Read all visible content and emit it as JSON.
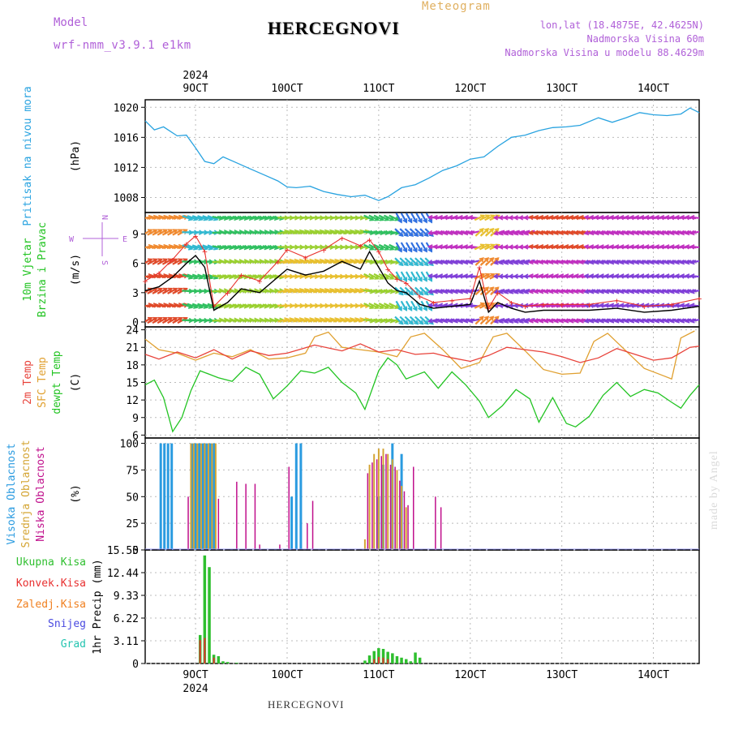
{
  "header": {
    "model_label": "Model",
    "model_name": "wrf-nmm_v3.9.1 e1km",
    "title": "HERCEGNOVI",
    "meteogram_label": "Meteogram",
    "lonlat": "lon,lat (18.4875E, 42.4625N)",
    "altitude": "Nadmorska Visina 60m",
    "model_altitude": "Nadmorska Visina u modelu 88.4629m",
    "footer_title": "HERCEGNOVI",
    "credit": "made by Angel"
  },
  "colors": {
    "pressure": "#29a3e0",
    "wind_speed": "#000000",
    "gust": "#e8322e",
    "temp2m": "#e8423a",
    "sfc_temp": "#e0a030",
    "dewpt": "#22c422",
    "cloud_high": "#2a9be0",
    "cloud_mid": "#d4a534",
    "cloud_low": "#c0108c",
    "precip_total": "#2ebf2e",
    "precip_conv": "#e83030",
    "precip_frozen": "#f08020",
    "snow": "#4a4ae0",
    "grad": "#24c4b0"
  },
  "chart_data": {
    "type": "line",
    "time_axis": {
      "top_year": "2024",
      "bottom_year": "2024",
      "day_ticks": [
        "9OCT",
        "10OCT",
        "11OCT",
        "12OCT",
        "13OCT",
        "14OCT"
      ],
      "start_day": 8.45,
      "end_day": 14.5
    },
    "panels": [
      {
        "id": "pressure",
        "ylabel_lines": [
          "Pritisak na nivou mora"
        ],
        "unit": "(hPa)",
        "ylim": [
          1006,
          1021
        ],
        "yticks": [
          1008,
          1012,
          1016,
          1020
        ],
        "series": [
          {
            "name": "Pritisak na nivou mora",
            "x": [
              8.45,
              8.55,
              8.65,
              8.8,
              8.9,
              9.0,
              9.1,
              9.2,
              9.3,
              9.45,
              9.6,
              9.75,
              9.9,
              10.0,
              10.1,
              10.25,
              10.4,
              10.55,
              10.7,
              10.85,
              11.0,
              11.1,
              11.25,
              11.4,
              11.55,
              11.7,
              11.85,
              12.0,
              12.15,
              12.3,
              12.45,
              12.6,
              12.75,
              12.9,
              13.05,
              13.2,
              13.4,
              13.55,
              13.7,
              13.85,
              14.0,
              14.15,
              14.3,
              14.4,
              14.5
            ],
            "y": [
              1018.2,
              1017.0,
              1017.4,
              1016.2,
              1016.3,
              1014.6,
              1012.8,
              1012.5,
              1013.4,
              1012.6,
              1011.8,
              1011.0,
              1010.2,
              1009.4,
              1009.3,
              1009.5,
              1008.8,
              1008.4,
              1008.1,
              1008.3,
              1007.6,
              1008.1,
              1009.3,
              1009.7,
              1010.6,
              1011.6,
              1012.2,
              1013.1,
              1013.4,
              1014.8,
              1016.0,
              1016.3,
              1016.9,
              1017.3,
              1017.4,
              1017.6,
              1018.6,
              1018.0,
              1018.6,
              1019.3,
              1019.0,
              1018.9,
              1019.1,
              1019.9,
              1019.3
            ]
          }
        ]
      },
      {
        "id": "wind",
        "ylabel_lines": [
          "10m Vjetar",
          "Brzina i Pravac"
        ],
        "unit": "(m/s)",
        "ylim": [
          -0.5,
          11.2
        ],
        "yticks": [
          0,
          3,
          6,
          9
        ],
        "compass": {
          "n": "N",
          "e": "E",
          "s": "S",
          "w": "W"
        },
        "series": [
          {
            "name": "wind speed",
            "x": [
              8.45,
              8.6,
              8.75,
              8.9,
              9.0,
              9.1,
              9.2,
              9.35,
              9.5,
              9.7,
              9.9,
              10.0,
              10.2,
              10.4,
              10.6,
              10.8,
              10.9,
              11.0,
              11.1,
              11.2,
              11.3,
              11.45,
              11.6,
              11.8,
              12.0,
              12.1,
              12.2,
              12.3,
              12.45,
              12.6,
              12.8,
              13.0,
              13.3,
              13.6,
              13.9,
              14.2,
              14.5
            ],
            "y": [
              3.2,
              3.6,
              4.6,
              6.0,
              6.8,
              5.6,
              1.2,
              2.0,
              3.4,
              3.0,
              4.6,
              5.4,
              4.8,
              5.2,
              6.2,
              5.4,
              7.2,
              5.6,
              4.0,
              3.2,
              3.0,
              1.8,
              1.4,
              1.6,
              1.8,
              4.2,
              1.0,
              2.0,
              1.4,
              1.0,
              1.2,
              1.2,
              1.2,
              1.4,
              1.0,
              1.2,
              1.6
            ]
          },
          {
            "name": "gust",
            "x": [
              8.45,
              8.6,
              8.75,
              8.9,
              9.0,
              9.1,
              9.2,
              9.35,
              9.5,
              9.7,
              9.9,
              10.0,
              10.2,
              10.4,
              10.6,
              10.8,
              10.9,
              11.0,
              11.1,
              11.2,
              11.3,
              11.45,
              11.6,
              11.8,
              12.0,
              12.1,
              12.2,
              12.3,
              12.45,
              12.6,
              12.8,
              13.0,
              13.3,
              13.6,
              13.9,
              14.2,
              14.5
            ],
            "y": [
              4.2,
              5.0,
              6.4,
              8.0,
              8.8,
              7.2,
              1.6,
              3.0,
              4.8,
              4.2,
              6.2,
              7.4,
              6.6,
              7.4,
              8.6,
              7.8,
              8.4,
              7.2,
              5.4,
              4.4,
              4.0,
              2.6,
              2.0,
              2.2,
              2.4,
              5.6,
              1.4,
              3.0,
              2.0,
              1.6,
              1.8,
              1.8,
              1.8,
              2.2,
              1.6,
              1.8,
              2.4
            ]
          }
        ]
      },
      {
        "id": "temperature",
        "ylabel_lines": [
          "2m Temp",
          "SFC Temp",
          "dewpt Temp"
        ],
        "unit": "(C)",
        "ylim": [
          5.5,
          24.5
        ],
        "yticks": [
          6,
          9,
          12,
          15,
          18,
          21,
          24
        ],
        "series": [
          {
            "name": "2m Temp",
            "x": [
              8.45,
              8.6,
              8.8,
              9.0,
              9.2,
              9.4,
              9.6,
              9.8,
              10.0,
              10.3,
              10.6,
              10.8,
              11.0,
              11.2,
              11.4,
              11.6,
              11.8,
              12.0,
              12.2,
              12.4,
              12.6,
              12.8,
              13.0,
              13.2,
              13.4,
              13.6,
              13.8,
              14.0,
              14.2,
              14.4,
              14.5
            ],
            "y": [
              19.8,
              19.0,
              20.2,
              19.2,
              20.6,
              19.0,
              20.4,
              19.6,
              20.0,
              21.4,
              20.4,
              21.6,
              20.2,
              20.6,
              19.8,
              20.0,
              19.2,
              18.6,
              19.6,
              21.0,
              20.6,
              20.2,
              19.4,
              18.4,
              19.2,
              20.8,
              19.8,
              18.8,
              19.2,
              21.0,
              21.2
            ]
          },
          {
            "name": "SFC Temp",
            "x": [
              8.45,
              8.6,
              8.8,
              9.0,
              9.2,
              9.4,
              9.6,
              9.8,
              10.0,
              10.2,
              10.3,
              10.45,
              10.6,
              10.8,
              11.0,
              11.2,
              11.35,
              11.5,
              11.7,
              11.9,
              12.1,
              12.25,
              12.4,
              12.6,
              12.8,
              13.0,
              13.2,
              13.35,
              13.5,
              13.7,
              13.9,
              14.1,
              14.2,
              14.3,
              14.45
            ],
            "y": [
              22.4,
              20.6,
              20.0,
              18.8,
              20.0,
              19.4,
              20.6,
              19.0,
              19.2,
              20.0,
              22.8,
              23.6,
              21.0,
              20.6,
              20.2,
              19.4,
              22.8,
              23.4,
              20.6,
              17.4,
              18.4,
              22.8,
              23.4,
              20.4,
              17.2,
              16.4,
              16.6,
              22.0,
              23.4,
              20.4,
              17.4,
              16.2,
              15.6,
              22.6,
              23.8
            ]
          },
          {
            "name": "dewpt Temp",
            "x": [
              8.45,
              8.55,
              8.65,
              8.75,
              8.85,
              8.95,
              9.05,
              9.15,
              9.25,
              9.4,
              9.55,
              9.7,
              9.85,
              10.0,
              10.15,
              10.3,
              10.45,
              10.6,
              10.75,
              10.85,
              11.0,
              11.1,
              11.2,
              11.3,
              11.4,
              11.5,
              11.65,
              11.8,
              11.95,
              12.1,
              12.2,
              12.35,
              12.5,
              12.65,
              12.75,
              12.9,
              13.05,
              13.15,
              13.3,
              13.45,
              13.6,
              13.75,
              13.9,
              14.05,
              14.2,
              14.3,
              14.4,
              14.5
            ],
            "y": [
              14.6,
              15.4,
              12.4,
              6.6,
              9.0,
              13.6,
              17.0,
              16.4,
              15.8,
              15.2,
              17.6,
              16.4,
              12.2,
              14.4,
              17.0,
              16.6,
              17.6,
              15.0,
              13.2,
              10.4,
              17.0,
              19.2,
              18.0,
              15.6,
              16.2,
              16.8,
              14.0,
              16.8,
              14.6,
              11.8,
              9.0,
              11.0,
              13.8,
              12.2,
              8.2,
              12.4,
              8.0,
              7.4,
              9.2,
              12.8,
              15.0,
              12.6,
              13.8,
              13.2,
              11.6,
              10.6,
              12.8,
              14.6
            ]
          }
        ]
      },
      {
        "id": "clouds",
        "ylabel_lines": [
          "Visoka Oblacnost",
          "Srednja Oblacnost",
          "Niska Oblacnost"
        ],
        "unit": "(%)",
        "ylim": [
          0,
          105
        ],
        "yticks": [
          0,
          25,
          50,
          75,
          100
        ],
        "series": [
          {
            "name": "Visoka Oblacnost",
            "x": [
              8.62,
              8.66,
              8.7,
              8.74,
              8.96,
              9.0,
              9.04,
              9.08,
              9.12,
              9.16,
              9.2,
              10.05,
              10.1,
              10.15,
              11.0,
              11.05,
              11.15,
              11.25
            ],
            "y": [
              100,
              100,
              100,
              100,
              100,
              100,
              100,
              100,
              100,
              100,
              100,
              50,
              100,
              100,
              50,
              80,
              100,
              90
            ]
          },
          {
            "name": "Srednja Oblacnost",
            "x": [
              8.95,
              8.98,
              9.02,
              9.06,
              9.1,
              9.14,
              9.18,
              9.22,
              10.85,
              10.9,
              10.95,
              11.0,
              11.05,
              11.1,
              11.15,
              11.2,
              11.25,
              11.3
            ],
            "y": [
              100,
              100,
              100,
              100,
              100,
              100,
              100,
              100,
              10,
              80,
              90,
              95,
              95,
              90,
              85,
              75,
              60,
              40
            ]
          },
          {
            "name": "Niska Oblacnost",
            "x": [
              8.92,
              9.25,
              9.45,
              9.55,
              9.65,
              9.7,
              9.92,
              10.02,
              10.22,
              10.28,
              10.88,
              10.93,
              10.98,
              11.03,
              11.08,
              11.13,
              11.18,
              11.23,
              11.28,
              11.32,
              11.38,
              11.62,
              11.68
            ],
            "y": [
              50,
              48,
              64,
              62,
              62,
              5,
              5,
              78,
              25,
              46,
              72,
              82,
              85,
              88,
              90,
              80,
              78,
              65,
              55,
              42,
              78,
              50,
              40
            ]
          }
        ]
      },
      {
        "id": "precip",
        "ylabel_lines": [
          "Ukupna Kisa",
          "Konvek.Kisa",
          "Zaledj.Kisa",
          "Snijeg",
          "Grad"
        ],
        "unit": "1hr Precip (mm)",
        "ylim": [
          0,
          15.55
        ],
        "yticks": [
          "0",
          "3.11",
          "6.22",
          "9.33",
          "12.44",
          "15.55"
        ],
        "series": [
          {
            "name": "Ukupna Kisa",
            "x": [
              9.05,
              9.1,
              9.15,
              9.2,
              9.25,
              9.3,
              9.35,
              9.45,
              10.85,
              10.9,
              10.95,
              11.0,
              11.05,
              11.1,
              11.15,
              11.2,
              11.25,
              11.3,
              11.35,
              11.4,
              11.45
            ],
            "y": [
              3.9,
              14.8,
              13.2,
              1.2,
              1.0,
              0.3,
              0.2,
              0.1,
              0.4,
              1.1,
              1.7,
              2.1,
              2.0,
              1.6,
              1.4,
              1.0,
              0.8,
              0.6,
              0.3,
              1.5,
              0.8
            ]
          },
          {
            "name": "Konvek.Kisa",
            "x": [
              9.05,
              9.1,
              9.2,
              10.95,
              11.0,
              11.05,
              11.1
            ],
            "y": [
              3.2,
              3.5,
              0.8,
              0.6,
              0.9,
              0.8,
              0.6
            ]
          },
          {
            "name": "Zaledj.Kisa",
            "x": [],
            "y": []
          },
          {
            "name": "Snijeg",
            "x": [],
            "y": []
          },
          {
            "name": "Grad",
            "x": [],
            "y": []
          }
        ]
      }
    ]
  }
}
